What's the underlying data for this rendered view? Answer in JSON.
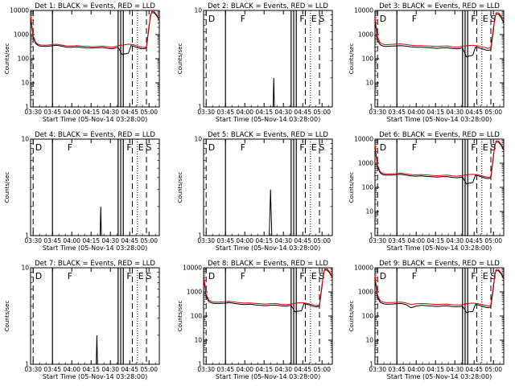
{
  "figure": {
    "x_tick_labels": [
      "03:30",
      "03:45",
      "04:00",
      "04:15",
      "04:30",
      "04:45",
      "05:00"
    ],
    "x_label": "Start Time (05-Nov-14 03:28:00)",
    "y_label": "Counts/sec",
    "colors": {
      "events": "#000000",
      "lld": "#e00000",
      "axes": "#000000"
    }
  },
  "chart_data": [
    {
      "type": "line",
      "title": "Det 1: BLACK = Events, RED = LLD",
      "x_unit": "minutes after 03:28:00",
      "y_scale": "log",
      "ylim": [
        1,
        10000
      ],
      "xlim": [
        0,
        100
      ],
      "y_tick_labels": [
        "1",
        "10",
        "100",
        "1000",
        "10000"
      ],
      "flags": [],
      "series": [
        {
          "name": "Events",
          "x": [
            0,
            1,
            2,
            4,
            6,
            8,
            12,
            16,
            20,
            24,
            28,
            32,
            36,
            40,
            44,
            48,
            52,
            56,
            60,
            64,
            68,
            71,
            72,
            73,
            74,
            76,
            78,
            80,
            82,
            84,
            86,
            88,
            90,
            92,
            93,
            94,
            96,
            98,
            100
          ],
          "y": [
            5000,
            2000,
            800,
            420,
            350,
            330,
            320,
            340,
            360,
            330,
            300,
            300,
            310,
            290,
            280,
            275,
            285,
            290,
            270,
            260,
            300,
            150,
            150,
            160,
            160,
            170,
            350,
            330,
            300,
            280,
            260,
            260,
            280,
            2000,
            6000,
            8000,
            8000,
            6000,
            4000
          ]
        },
        {
          "name": "LLD",
          "x": [
            0,
            1,
            2,
            4,
            6,
            8,
            12,
            16,
            20,
            24,
            28,
            32,
            36,
            40,
            44,
            48,
            52,
            56,
            60,
            64,
            68,
            72,
            76,
            80,
            84,
            88,
            90,
            92,
            94,
            96,
            98,
            100
          ],
          "y": [
            6000,
            2500,
            900,
            470,
            390,
            370,
            360,
            380,
            400,
            370,
            340,
            340,
            350,
            330,
            320,
            310,
            320,
            330,
            310,
            300,
            350,
            370,
            400,
            380,
            320,
            290,
            310,
            2500,
            9000,
            9000,
            6500,
            4500
          ]
        }
      ]
    },
    {
      "type": "line",
      "title": "Det 2: BLACK = Events, RED = LLD",
      "x_unit": "minutes after 03:28:00",
      "y_scale": "log",
      "ylim": [
        1,
        10
      ],
      "xlim": [
        0,
        100
      ],
      "y_tick_labels": [
        "1",
        "10"
      ],
      "flags": [
        "D",
        "F",
        "F",
        "E",
        "S"
      ],
      "series": [
        {
          "name": "Events",
          "x": [
            0,
            54,
            54.5,
            55,
            100
          ],
          "y": [
            1,
            1,
            2,
            1,
            1
          ]
        }
      ]
    },
    {
      "type": "line",
      "title": "Det 3: BLACK = Events, RED = LLD",
      "x_unit": "minutes after 03:28:00",
      "y_scale": "log",
      "ylim": [
        1,
        10000
      ],
      "xlim": [
        0,
        100
      ],
      "y_tick_labels": [
        "1",
        "10",
        "100",
        "1000",
        "10000"
      ],
      "flags": [
        "D",
        "F",
        "F",
        "E",
        "S"
      ],
      "series": [
        {
          "name": "Events",
          "x": [
            0,
            1,
            2,
            4,
            6,
            8,
            12,
            16,
            20,
            24,
            28,
            32,
            36,
            40,
            44,
            48,
            52,
            56,
            60,
            64,
            68,
            71,
            72,
            73,
            74,
            76,
            78,
            80,
            82,
            84,
            86,
            88,
            90,
            92,
            93,
            94,
            96,
            98,
            100
          ],
          "y": [
            4000,
            1500,
            600,
            380,
            340,
            320,
            330,
            340,
            350,
            330,
            310,
            300,
            300,
            290,
            280,
            270,
            280,
            285,
            265,
            255,
            280,
            120,
            120,
            130,
            130,
            140,
            300,
            290,
            270,
            250,
            230,
            220,
            240,
            1500,
            5000,
            7000,
            7000,
            5000,
            3000
          ]
        },
        {
          "name": "LLD",
          "x": [
            0,
            1,
            2,
            4,
            6,
            8,
            12,
            16,
            20,
            24,
            28,
            32,
            36,
            40,
            44,
            48,
            52,
            56,
            60,
            64,
            68,
            72,
            76,
            80,
            84,
            88,
            90,
            92,
            94,
            96,
            98,
            100
          ],
          "y": [
            5000,
            2000,
            800,
            460,
            400,
            380,
            390,
            400,
            410,
            390,
            360,
            350,
            350,
            340,
            330,
            320,
            330,
            340,
            310,
            300,
            330,
            350,
            360,
            340,
            300,
            270,
            290,
            2000,
            8000,
            8000,
            6000,
            4000
          ]
        }
      ]
    },
    {
      "type": "line",
      "title": "Det 4: BLACK = Events, RED = LLD",
      "x_unit": "minutes after 03:28:00",
      "y_scale": "log",
      "ylim": [
        1,
        10
      ],
      "xlim": [
        0,
        100
      ],
      "y_tick_labels": [
        "1",
        "10"
      ],
      "flags": [
        "D",
        "F",
        "F",
        "E",
        "S"
      ],
      "series": [
        {
          "name": "Events",
          "x": [
            0,
            54,
            54.5,
            55,
            100
          ],
          "y": [
            1,
            1,
            2,
            1,
            1
          ]
        }
      ]
    },
    {
      "type": "line",
      "title": "Det 5: BLACK = Events, RED = LLD",
      "x_unit": "minutes after 03:28:00",
      "y_scale": "log",
      "ylim": [
        1,
        10
      ],
      "xlim": [
        0,
        100
      ],
      "y_tick_labels": [
        "1",
        "10"
      ],
      "flags": [
        "D",
        "F",
        "F",
        "E",
        "S"
      ],
      "series": [
        {
          "name": "Events",
          "x": [
            0,
            51,
            52,
            53,
            100
          ],
          "y": [
            1,
            1,
            3,
            1,
            1
          ]
        }
      ]
    },
    {
      "type": "line",
      "title": "Det 6: BLACK = Events, RED = LLD",
      "x_unit": "minutes after 03:28:00",
      "y_scale": "log",
      "ylim": [
        1,
        10000
      ],
      "xlim": [
        0,
        100
      ],
      "y_tick_labels": [
        "1",
        "10",
        "100",
        "1000",
        "10000"
      ],
      "flags": [
        "D",
        "F",
        "F",
        "E",
        "S"
      ],
      "series": [
        {
          "name": "Events",
          "x": [
            0,
            1,
            2,
            4,
            6,
            8,
            12,
            16,
            20,
            24,
            28,
            32,
            36,
            40,
            44,
            48,
            52,
            56,
            60,
            64,
            68,
            71,
            72,
            73,
            74,
            76,
            78,
            80,
            82,
            84,
            86,
            88,
            90,
            92,
            93,
            94,
            96,
            98,
            100
          ],
          "y": [
            5000,
            1800,
            700,
            400,
            340,
            320,
            320,
            330,
            350,
            320,
            300,
            290,
            300,
            285,
            275,
            265,
            275,
            280,
            260,
            250,
            270,
            140,
            140,
            150,
            150,
            160,
            320,
            300,
            280,
            260,
            240,
            230,
            250,
            1800,
            5500,
            7500,
            7500,
            5500,
            3500
          ]
        },
        {
          "name": "LLD",
          "x": [
            0,
            1,
            2,
            4,
            6,
            8,
            12,
            16,
            20,
            24,
            28,
            32,
            36,
            40,
            44,
            48,
            52,
            56,
            60,
            64,
            68,
            72,
            76,
            80,
            84,
            88,
            90,
            92,
            94,
            96,
            98,
            100
          ],
          "y": [
            6000,
            2200,
            850,
            450,
            380,
            360,
            360,
            370,
            390,
            360,
            340,
            330,
            340,
            325,
            315,
            305,
            315,
            320,
            300,
            290,
            310,
            340,
            350,
            330,
            290,
            260,
            280,
            2200,
            8500,
            8500,
            6000,
            4200
          ]
        }
      ]
    },
    {
      "type": "line",
      "title": "Det 7: BLACK = Events, RED = LLD",
      "x_unit": "minutes after 03:28:00",
      "y_scale": "log",
      "ylim": [
        1,
        10
      ],
      "xlim": [
        0,
        100
      ],
      "y_tick_labels": [
        "1",
        "10"
      ],
      "flags": [
        "D",
        "F",
        "F",
        "E",
        "S"
      ],
      "series": [
        {
          "name": "Events",
          "x": [
            0,
            51,
            51.5,
            52,
            100
          ],
          "y": [
            1,
            1,
            2,
            1,
            1
          ]
        }
      ]
    },
    {
      "type": "line",
      "title": "Det 8: BLACK = Events, RED = LLD",
      "x_unit": "minutes after 03:28:00",
      "y_scale": "log",
      "ylim": [
        1,
        10000
      ],
      "xlim": [
        0,
        100
      ],
      "y_tick_labels": [
        "1",
        "10",
        "100",
        "1000",
        "10000"
      ],
      "flags": [
        "D",
        "F",
        "F",
        "E",
        "S"
      ],
      "series": [
        {
          "name": "Events",
          "x": [
            0,
            1,
            2,
            4,
            6,
            8,
            12,
            16,
            20,
            24,
            28,
            32,
            36,
            40,
            44,
            48,
            52,
            56,
            60,
            64,
            68,
            71,
            72,
            73,
            74,
            76,
            78,
            80,
            82,
            84,
            86,
            88,
            90,
            92,
            93,
            94,
            96,
            98,
            100
          ],
          "y": [
            4500,
            1600,
            650,
            400,
            350,
            330,
            330,
            340,
            360,
            330,
            310,
            300,
            310,
            290,
            280,
            270,
            280,
            285,
            265,
            255,
            275,
            150,
            150,
            160,
            160,
            165,
            330,
            310,
            290,
            270,
            250,
            240,
            260,
            1700,
            5500,
            8000,
            8000,
            6000,
            4000
          ]
        },
        {
          "name": "LLD",
          "x": [
            0,
            1,
            2,
            4,
            6,
            8,
            12,
            16,
            20,
            24,
            28,
            32,
            36,
            40,
            44,
            48,
            52,
            56,
            60,
            64,
            68,
            72,
            76,
            80,
            84,
            88,
            90,
            92,
            94,
            96,
            98,
            100
          ],
          "y": [
            5500,
            2000,
            820,
            460,
            400,
            380,
            380,
            390,
            410,
            380,
            355,
            345,
            350,
            335,
            325,
            315,
            325,
            330,
            305,
            295,
            315,
            345,
            360,
            340,
            300,
            270,
            290,
            2100,
            9000,
            9000,
            6500,
            4500
          ]
        }
      ]
    },
    {
      "type": "line",
      "title": "Det 9: BLACK = Events, RED = LLD",
      "x_unit": "minutes after 03:28:00",
      "y_scale": "log",
      "ylim": [
        1,
        10000
      ],
      "xlim": [
        0,
        100
      ],
      "y_tick_labels": [
        "1",
        "10",
        "100",
        "1000",
        "10000"
      ],
      "flags": [
        "D",
        "F",
        "F",
        "E",
        "S"
      ],
      "series": [
        {
          "name": "Events",
          "x": [
            0,
            1,
            2,
            4,
            6,
            8,
            12,
            16,
            20,
            24,
            28,
            32,
            36,
            40,
            44,
            48,
            52,
            56,
            60,
            64,
            68,
            71,
            72,
            73,
            74,
            76,
            78,
            80,
            82,
            84,
            86,
            88,
            90,
            92,
            93,
            94,
            96,
            98,
            100
          ],
          "y": [
            4000,
            1400,
            600,
            370,
            330,
            310,
            310,
            320,
            330,
            300,
            220,
            260,
            280,
            270,
            260,
            250,
            260,
            265,
            250,
            240,
            260,
            140,
            140,
            150,
            150,
            155,
            300,
            290,
            270,
            250,
            230,
            220,
            240,
            1500,
            5000,
            7500,
            7500,
            5500,
            3500
          ]
        },
        {
          "name": "LLD",
          "x": [
            0,
            1,
            2,
            4,
            6,
            8,
            12,
            16,
            20,
            24,
            28,
            32,
            36,
            40,
            44,
            48,
            52,
            56,
            60,
            64,
            68,
            72,
            76,
            80,
            84,
            88,
            90,
            92,
            94,
            96,
            98,
            100
          ],
          "y": [
            5000,
            1800,
            760,
            430,
            380,
            360,
            360,
            370,
            380,
            350,
            300,
            320,
            330,
            320,
            310,
            300,
            310,
            315,
            295,
            285,
            300,
            330,
            345,
            325,
            290,
            260,
            280,
            2000,
            8500,
            8500,
            6000,
            4200
          ]
        }
      ]
    }
  ],
  "x_ticks_minutes": [
    2,
    17,
    32,
    47,
    62,
    77,
    92
  ],
  "vlines": {
    "dashed": [
      2,
      79,
      90
    ],
    "solid": [
      17,
      68,
      70,
      72
    ],
    "dotted": [
      83
    ]
  }
}
